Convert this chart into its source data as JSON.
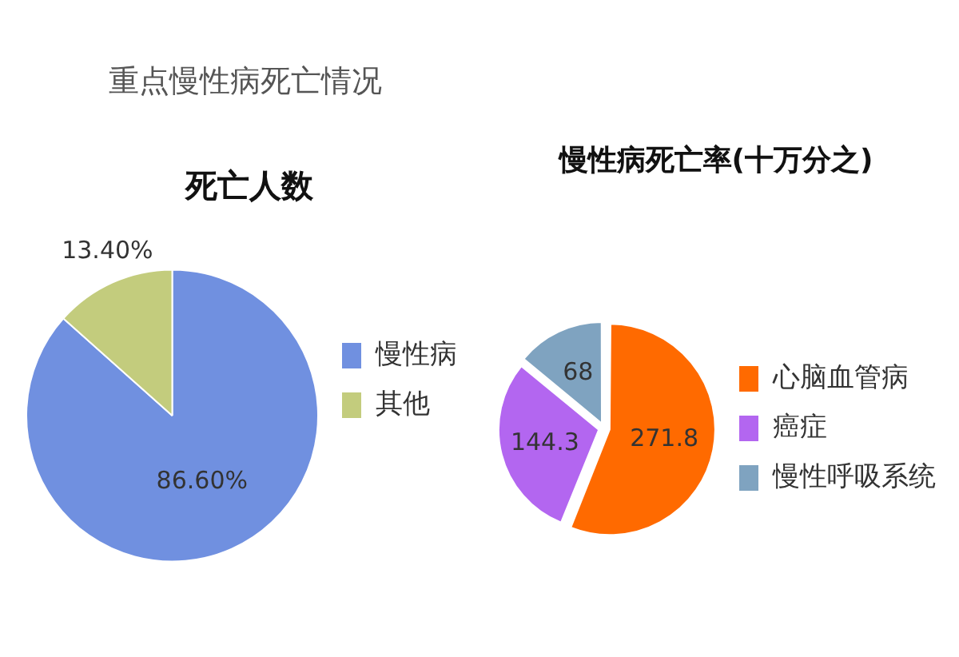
{
  "chart_data": [
    {
      "type": "pie",
      "title": "重点慢性病死亡情况",
      "subtitle": "死亡人数",
      "categories": [
        "慢性病",
        "其他"
      ],
      "values": [
        86.6,
        13.4
      ],
      "value_labels": [
        "86.60%",
        "13.40%"
      ],
      "colors": [
        "#7090e0",
        "#c3cc7d"
      ],
      "legend": "right"
    },
    {
      "type": "pie",
      "title": "慢性病死亡率(十万分之)",
      "categories": [
        "心脑血管病",
        "癌症",
        "慢性呼吸系统"
      ],
      "values": [
        271.8,
        144.3,
        68
      ],
      "data_labels": true,
      "colors": [
        "#ff6a00",
        "#b366f0",
        "#7fa3c0"
      ],
      "legend": "right"
    }
  ]
}
